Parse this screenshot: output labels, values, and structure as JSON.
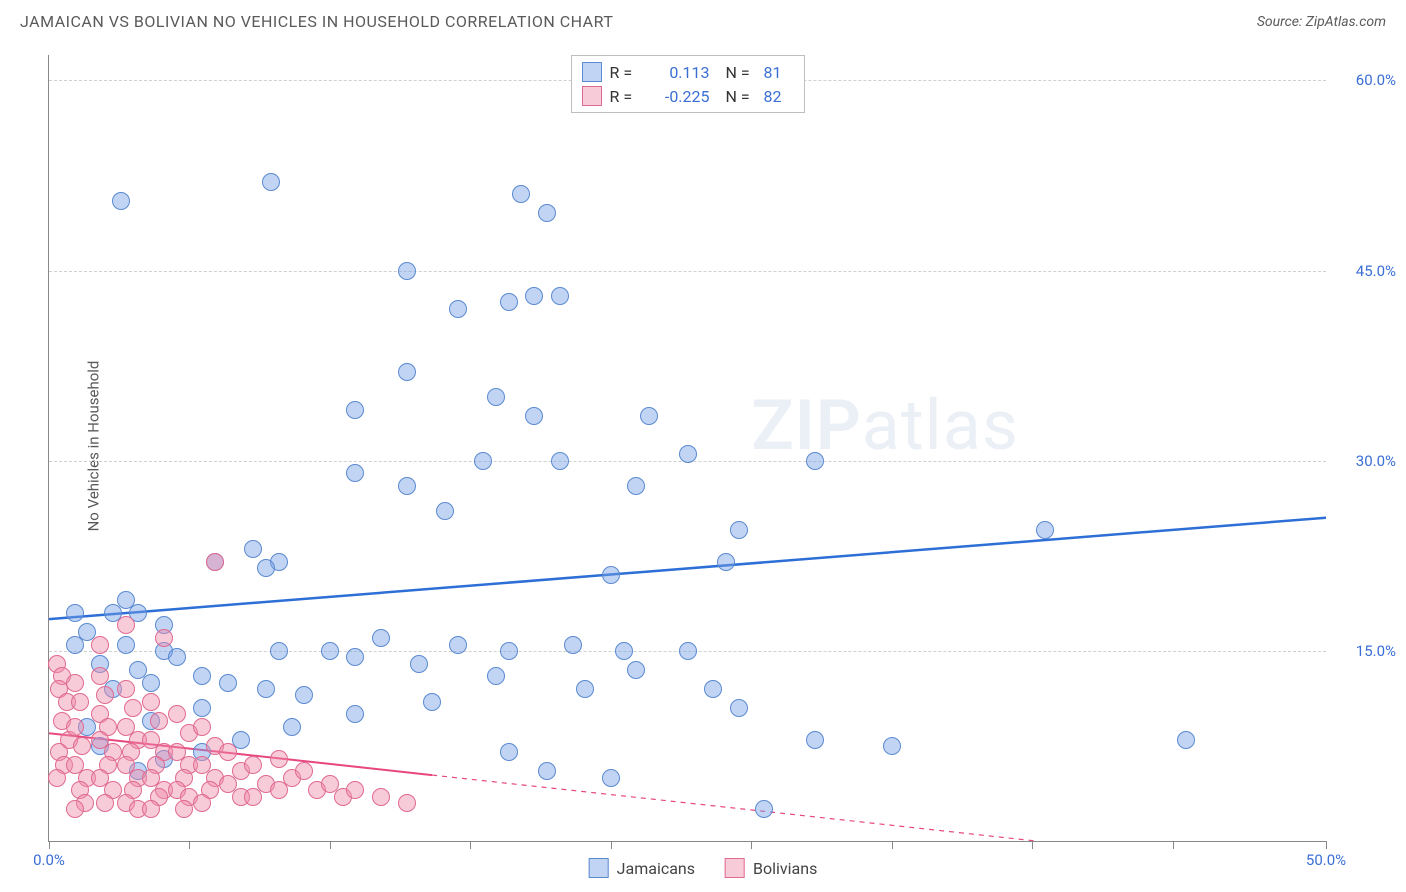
{
  "header": {
    "title": "JAMAICAN VS BOLIVIAN NO VEHICLES IN HOUSEHOLD CORRELATION CHART",
    "source": "Source: ZipAtlas.com"
  },
  "ylabel": "No Vehicles in Household",
  "watermark": {
    "bold": "ZIP",
    "light": "atlas"
  },
  "chart": {
    "type": "scatter",
    "xlim": [
      0,
      50
    ],
    "ylim": [
      0,
      62
    ],
    "xticks": [
      0,
      5.5,
      11,
      16.5,
      22,
      27.5,
      33,
      38.5,
      44,
      50
    ],
    "xtick_labels": {
      "0": "0.0%",
      "50": "50.0%"
    },
    "yticks": [
      15,
      30,
      45,
      60
    ],
    "ytick_labels": [
      "15.0%",
      "30.0%",
      "45.0%",
      "60.0%"
    ],
    "background_color": "#ffffff",
    "grid_color": "#d0d0d0",
    "axis_color": "#888888",
    "marker_radius": 9,
    "marker_border_width": 1.5,
    "series": [
      {
        "name": "Jamaicans",
        "fill_color": "rgba(120,160,230,0.45)",
        "border_color": "#5a8ad0",
        "trend": {
          "color": "#2d6fd6",
          "width": 2.5,
          "y_at_x0": 17.5,
          "y_at_x50": 25.5,
          "solid_until_x": 50
        },
        "R": "0.113",
        "N": "81",
        "points": [
          [
            2.8,
            50.5
          ],
          [
            8.7,
            52
          ],
          [
            14,
            45
          ],
          [
            16,
            42
          ],
          [
            18,
            42.5
          ],
          [
            19,
            43
          ],
          [
            20,
            43
          ],
          [
            19.5,
            49.5
          ],
          [
            18.5,
            51
          ],
          [
            12,
            34
          ],
          [
            14,
            37
          ],
          [
            17.5,
            35
          ],
          [
            19,
            33.5
          ],
          [
            23.5,
            33.5
          ],
          [
            17,
            30
          ],
          [
            12,
            29
          ],
          [
            20,
            30
          ],
          [
            14,
            28
          ],
          [
            25,
            30.5
          ],
          [
            30,
            30
          ],
          [
            23,
            28
          ],
          [
            15.5,
            26
          ],
          [
            8,
            23
          ],
          [
            9,
            22
          ],
          [
            8.5,
            21.5
          ],
          [
            6.5,
            22
          ],
          [
            27,
            24.5
          ],
          [
            22,
            21
          ],
          [
            26.5,
            22
          ],
          [
            39,
            24.5
          ],
          [
            1,
            18
          ],
          [
            2.5,
            18
          ],
          [
            3.5,
            18
          ],
          [
            3,
            19
          ],
          [
            4.5,
            17
          ],
          [
            1.5,
            16.5
          ],
          [
            1,
            15.5
          ],
          [
            3,
            15.5
          ],
          [
            4.5,
            15
          ],
          [
            2,
            14
          ],
          [
            3.5,
            13.5
          ],
          [
            5,
            14.5
          ],
          [
            6,
            13
          ],
          [
            4,
            12.5
          ],
          [
            2.5,
            12
          ],
          [
            7,
            12.5
          ],
          [
            8.5,
            12
          ],
          [
            10,
            11.5
          ],
          [
            9,
            15
          ],
          [
            11,
            15
          ],
          [
            13,
            16
          ],
          [
            12,
            14.5
          ],
          [
            14.5,
            14
          ],
          [
            16,
            15.5
          ],
          [
            18,
            15
          ],
          [
            20.5,
            15.5
          ],
          [
            22.5,
            15
          ],
          [
            25,
            15
          ],
          [
            17.5,
            13
          ],
          [
            21,
            12
          ],
          [
            23,
            13.5
          ],
          [
            26,
            12
          ],
          [
            27,
            10.5
          ],
          [
            15,
            11
          ],
          [
            12,
            10
          ],
          [
            9.5,
            9
          ],
          [
            7.5,
            8
          ],
          [
            6,
            7
          ],
          [
            4.5,
            6.5
          ],
          [
            3.5,
            5.5
          ],
          [
            18,
            7
          ],
          [
            19.5,
            5.5
          ],
          [
            22,
            5
          ],
          [
            28,
            2.5
          ],
          [
            30,
            8
          ],
          [
            33,
            7.5
          ],
          [
            44.5,
            8
          ],
          [
            1.5,
            9
          ],
          [
            2,
            7.5
          ],
          [
            4,
            9.5
          ],
          [
            6,
            10.5
          ]
        ]
      },
      {
        "name": "Bolivians",
        "fill_color": "rgba(240,140,170,0.45)",
        "border_color": "#e06a90",
        "trend": {
          "color": "#e7467f",
          "width": 2,
          "y_at_x0": 8.5,
          "y_at_x50": -2.5,
          "solid_until_x": 15
        },
        "R": "-0.225",
        "N": "82",
        "points": [
          [
            0.3,
            14
          ],
          [
            0.5,
            13
          ],
          [
            0.4,
            12
          ],
          [
            0.7,
            11
          ],
          [
            0.5,
            9.5
          ],
          [
            0.8,
            8
          ],
          [
            0.4,
            7
          ],
          [
            0.6,
            6
          ],
          [
            0.3,
            5
          ],
          [
            1,
            12.5
          ],
          [
            1.2,
            11
          ],
          [
            1,
            9
          ],
          [
            1.3,
            7.5
          ],
          [
            1,
            6
          ],
          [
            1.5,
            5
          ],
          [
            1.2,
            4
          ],
          [
            1.4,
            3
          ],
          [
            1,
            2.5
          ],
          [
            2,
            13
          ],
          [
            2.2,
            11.5
          ],
          [
            2,
            10
          ],
          [
            2.3,
            9
          ],
          [
            2,
            8
          ],
          [
            2.5,
            7
          ],
          [
            2.3,
            6
          ],
          [
            2,
            5
          ],
          [
            2.5,
            4
          ],
          [
            2.2,
            3
          ],
          [
            3,
            12
          ],
          [
            3.3,
            10.5
          ],
          [
            3,
            9
          ],
          [
            3.5,
            8
          ],
          [
            3.2,
            7
          ],
          [
            3,
            6
          ],
          [
            3.5,
            5
          ],
          [
            3.3,
            4
          ],
          [
            3,
            3
          ],
          [
            3.5,
            2.5
          ],
          [
            4,
            11
          ],
          [
            4.3,
            9.5
          ],
          [
            4,
            8
          ],
          [
            4.5,
            7
          ],
          [
            4.2,
            6
          ],
          [
            4,
            5
          ],
          [
            4.5,
            4
          ],
          [
            4.3,
            3.5
          ],
          [
            4,
            2.5
          ],
          [
            5,
            10
          ],
          [
            5.5,
            8.5
          ],
          [
            5,
            7
          ],
          [
            5.5,
            6
          ],
          [
            5.3,
            5
          ],
          [
            5,
            4
          ],
          [
            5.5,
            3.5
          ],
          [
            5.3,
            2.5
          ],
          [
            6,
            9
          ],
          [
            6.5,
            7.5
          ],
          [
            6,
            6
          ],
          [
            6.5,
            5
          ],
          [
            6.3,
            4
          ],
          [
            6,
            3
          ],
          [
            7,
            7
          ],
          [
            7.5,
            5.5
          ],
          [
            7,
            4.5
          ],
          [
            7.5,
            3.5
          ],
          [
            8,
            6
          ],
          [
            8.5,
            4.5
          ],
          [
            8,
            3.5
          ],
          [
            9,
            6.5
          ],
          [
            9.5,
            5
          ],
          [
            9,
            4
          ],
          [
            10,
            5.5
          ],
          [
            10.5,
            4
          ],
          [
            11,
            4.5
          ],
          [
            11.5,
            3.5
          ],
          [
            12,
            4
          ],
          [
            13,
            3.5
          ],
          [
            14,
            3
          ],
          [
            6.5,
            22
          ],
          [
            4.5,
            16
          ],
          [
            3,
            17
          ],
          [
            2,
            15.5
          ]
        ]
      }
    ]
  },
  "legend_top": {
    "rows": [
      {
        "swatch_fill": "rgba(120,160,230,0.45)",
        "swatch_border": "#5a8ad0",
        "r_label": "R =",
        "r_val": "0.113",
        "n_label": "N =",
        "n_val": "81"
      },
      {
        "swatch_fill": "rgba(240,140,170,0.45)",
        "swatch_border": "#e06a90",
        "r_label": "R =",
        "r_val": "-0.225",
        "n_label": "N =",
        "n_val": "82"
      }
    ]
  },
  "legend_bottom": {
    "items": [
      {
        "swatch_fill": "rgba(120,160,230,0.45)",
        "swatch_border": "#5a8ad0",
        "label": "Jamaicans"
      },
      {
        "swatch_fill": "rgba(240,140,170,0.45)",
        "swatch_border": "#e06a90",
        "label": "Bolivians"
      }
    ]
  }
}
